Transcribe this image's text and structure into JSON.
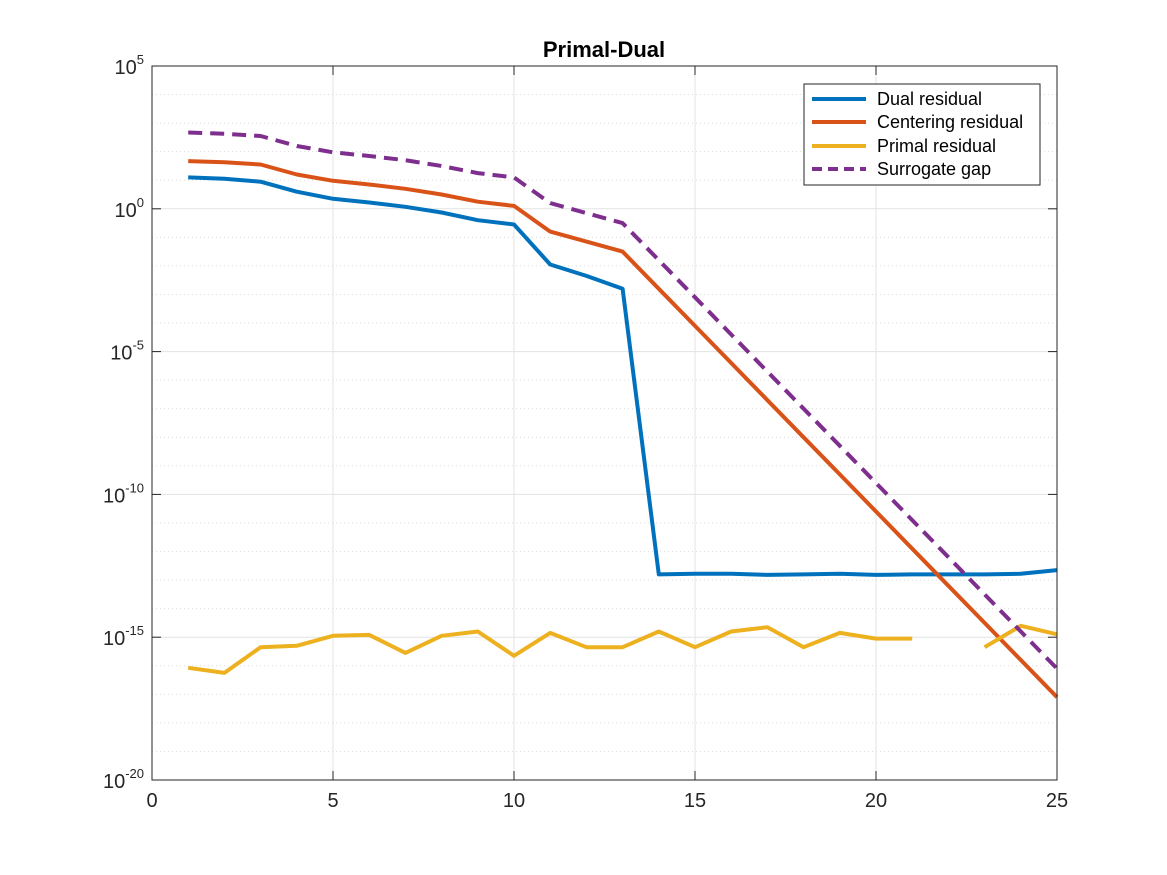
{
  "chart_data": {
    "type": "line",
    "title": "Primal-Dual",
    "xlabel": "",
    "ylabel": "",
    "xlim": [
      0,
      25
    ],
    "ylim_log10": [
      -20,
      5
    ],
    "yscale": "log",
    "grid": true,
    "legend_position": "top-right",
    "x_ticks": [
      "0",
      "5",
      "10",
      "15",
      "20",
      "25"
    ],
    "y_ticks": [
      {
        "exp": 5,
        "label": "10",
        "sup": "5"
      },
      {
        "exp": 0,
        "label": "10",
        "sup": "0"
      },
      {
        "exp": -5,
        "label": "10",
        "sup": "-5"
      },
      {
        "exp": -10,
        "label": "10",
        "sup": "-10"
      },
      {
        "exp": -15,
        "label": "10",
        "sup": "-15"
      },
      {
        "exp": -20,
        "label": "10",
        "sup": "-20"
      }
    ],
    "series": [
      {
        "name": "Dual residual",
        "color": "#0072BD",
        "dash": "solid",
        "x": [
          1,
          2,
          3,
          4,
          5,
          6,
          7,
          8,
          9,
          10,
          11,
          12,
          13,
          14,
          15,
          16,
          17,
          18,
          19,
          20,
          21,
          22,
          23,
          24,
          25
        ],
        "log10_y": [
          1.1,
          1.05,
          0.95,
          0.6,
          0.35,
          0.22,
          0.07,
          -0.13,
          -0.4,
          -0.55,
          -1.95,
          -2.35,
          -2.8,
          -12.8,
          -12.78,
          -12.78,
          -12.82,
          -12.8,
          -12.78,
          -12.82,
          -12.8,
          -12.8,
          -12.8,
          -12.78,
          -12.65
        ]
      },
      {
        "name": "Centering residual",
        "color": "#D95319",
        "dash": "solid",
        "x": [
          1,
          2,
          3,
          4,
          5,
          6,
          7,
          8,
          9,
          10,
          11,
          12,
          13,
          14,
          15,
          16,
          17,
          18,
          19,
          20,
          21,
          22,
          23,
          24,
          25
        ],
        "log10_y": [
          1.67,
          1.63,
          1.55,
          1.2,
          0.98,
          0.85,
          0.7,
          0.5,
          0.25,
          0.1,
          -0.8,
          -1.15,
          -1.5,
          -2.8,
          -4.1,
          -5.4,
          -6.7,
          -8.0,
          -9.3,
          -10.6,
          -11.9,
          -13.2,
          -14.5,
          -15.8,
          -17.1
        ]
      },
      {
        "name": "Primal residual",
        "color": "#EDB120",
        "dash": "solid",
        "x": [
          1,
          2,
          3,
          4,
          5,
          6,
          7,
          8,
          9,
          10,
          11,
          12,
          13,
          14,
          15,
          16,
          17,
          18,
          19,
          20,
          21,
          null,
          23,
          24,
          25
        ],
        "log10_y": [
          -16.07,
          -16.25,
          -15.35,
          -15.3,
          -14.95,
          -14.92,
          -15.55,
          -14.95,
          -14.8,
          -15.65,
          -14.85,
          -15.35,
          -15.35,
          -14.8,
          -15.35,
          -14.8,
          -14.65,
          -15.35,
          -14.85,
          -15.05,
          -15.05,
          null,
          -15.35,
          -14.6,
          -14.9
        ]
      },
      {
        "name": "Surrogate gap",
        "color": "#7E2F8E",
        "dash": "dashed",
        "x": [
          1,
          2,
          3,
          4,
          5,
          6,
          7,
          8,
          9,
          10,
          11,
          12,
          13,
          14,
          15,
          16,
          17,
          18,
          19,
          20,
          21,
          22,
          23,
          24,
          25
        ],
        "log10_y": [
          2.67,
          2.63,
          2.55,
          2.2,
          1.98,
          1.85,
          1.7,
          1.5,
          1.25,
          1.1,
          0.2,
          -0.15,
          -0.5,
          -1.8,
          -3.1,
          -4.4,
          -5.7,
          -7.0,
          -8.3,
          -9.6,
          -10.9,
          -12.2,
          -13.5,
          -14.8,
          -16.1
        ]
      }
    ]
  }
}
